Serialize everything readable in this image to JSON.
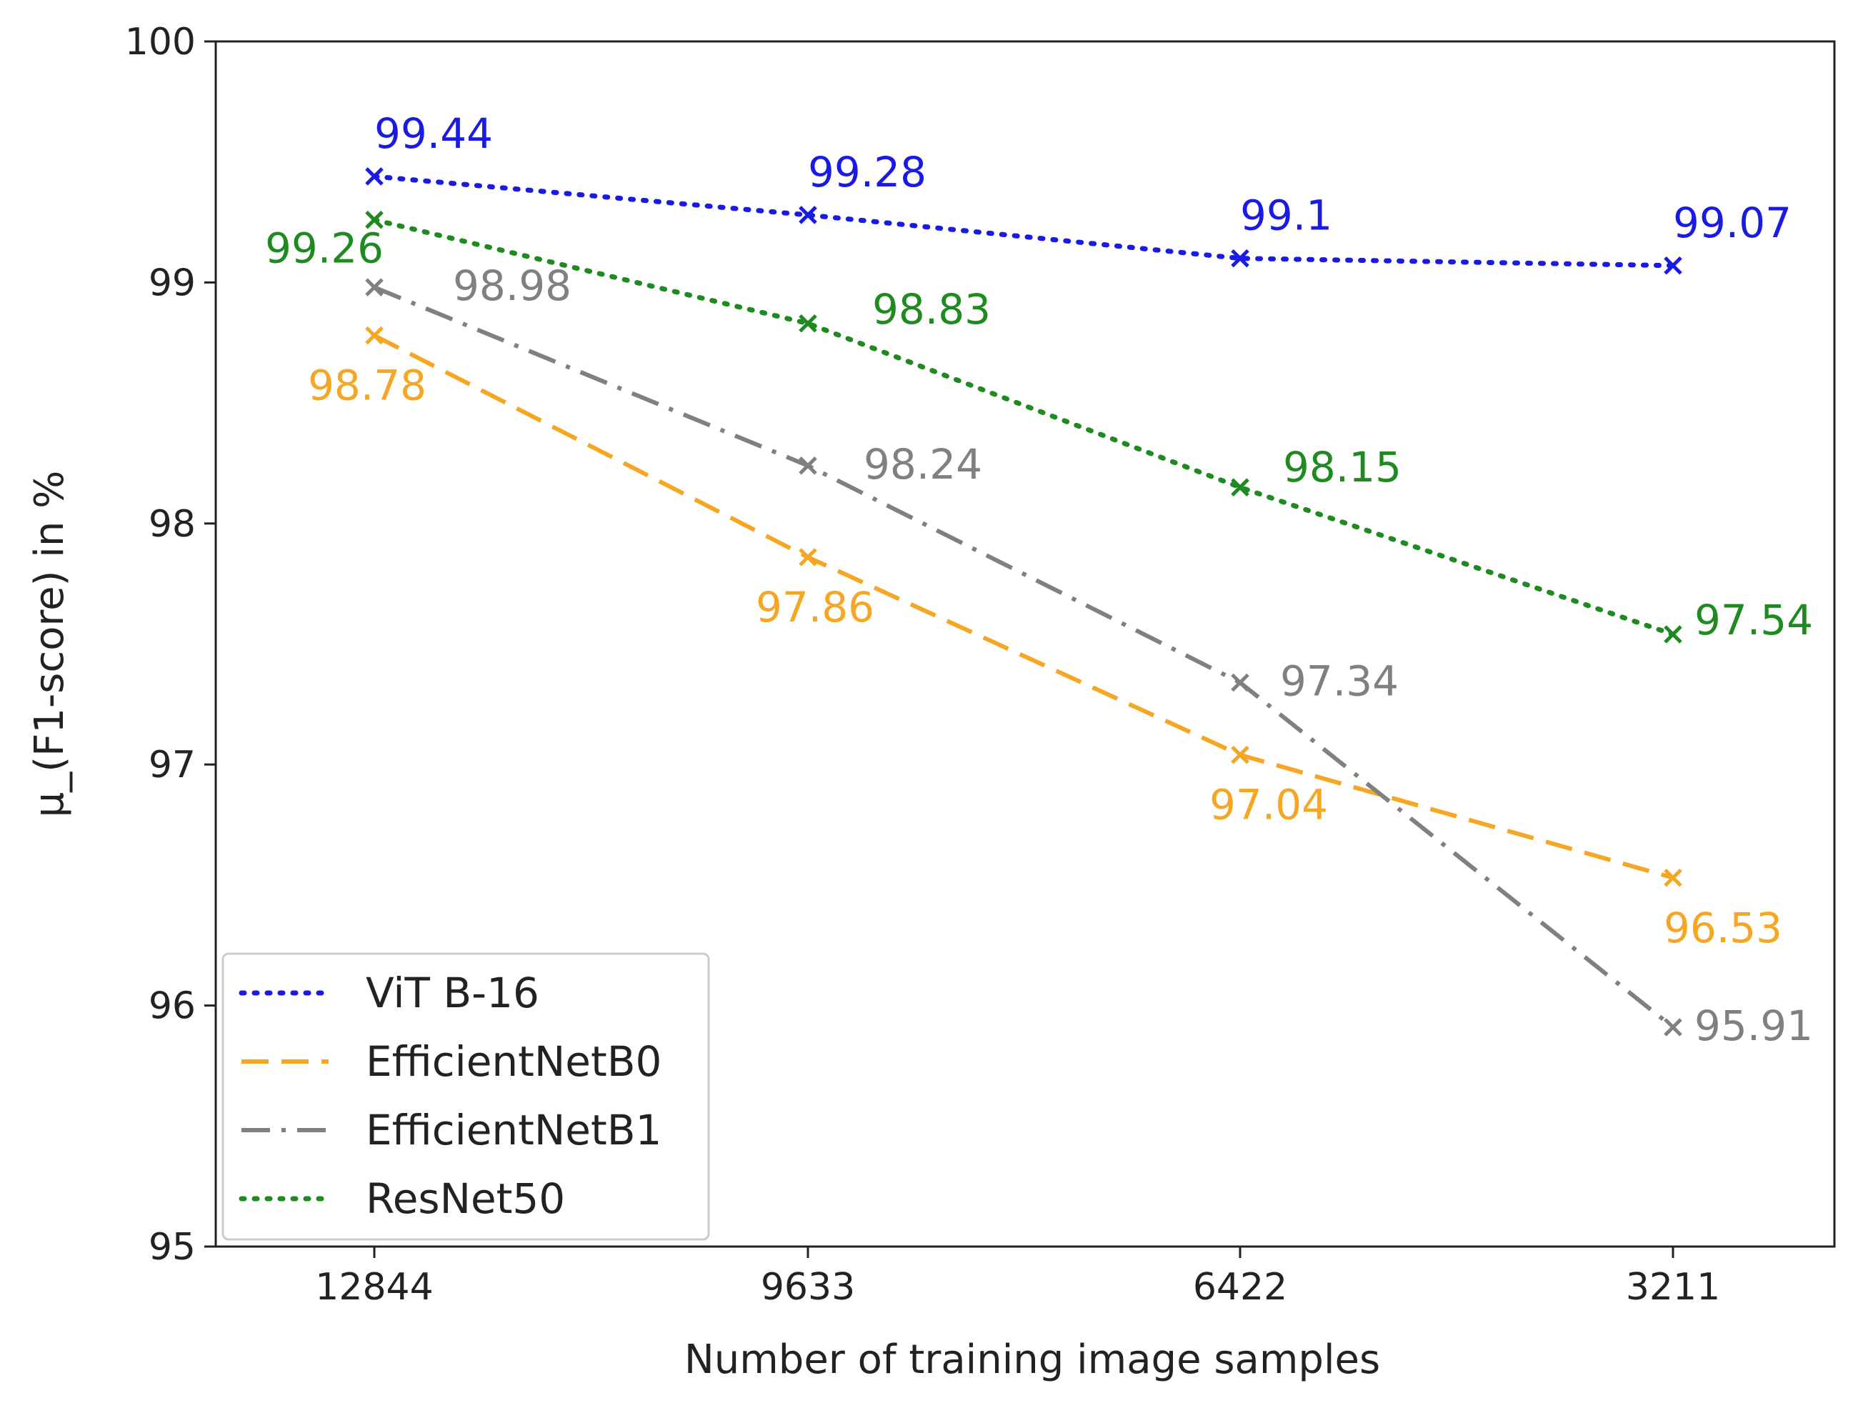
{
  "chart_data": {
    "type": "line",
    "title": "",
    "xlabel": "Number of training image samples",
    "ylabel": "μ_(F1-score) in %",
    "categories": [
      "12844",
      "9633",
      "6422",
      "3211"
    ],
    "ylim": [
      95,
      100
    ],
    "yticks": [
      "95",
      "96",
      "97",
      "98",
      "99",
      "100"
    ],
    "grid": false,
    "legend_position": "lower-left",
    "series": [
      {
        "name": "ViT B-16",
        "color": "#1a1ae6",
        "dash": "dotted",
        "values": [
          99.44,
          99.28,
          99.1,
          99.07
        ],
        "labels": [
          "99.44",
          "99.28",
          "99.1",
          "99.07"
        ]
      },
      {
        "name": "EfficientNetB0",
        "color": "#f5a623",
        "dash": "dashed",
        "values": [
          98.78,
          97.86,
          97.04,
          96.53
        ],
        "labels": [
          "98.78",
          "97.86",
          "97.04",
          "96.53"
        ]
      },
      {
        "name": "EfficientNetB1",
        "color": "#808080",
        "dash": "dashdot",
        "values": [
          98.98,
          98.24,
          97.34,
          95.91
        ],
        "labels": [
          "98.98",
          "98.24",
          "97.34",
          "95.91"
        ]
      },
      {
        "name": "ResNet50",
        "color": "#1f8a1f",
        "dash": "dotted",
        "values": [
          99.26,
          98.83,
          98.15,
          97.54
        ],
        "labels": [
          "99.26",
          "98.83",
          "98.15",
          "97.54"
        ]
      }
    ]
  }
}
